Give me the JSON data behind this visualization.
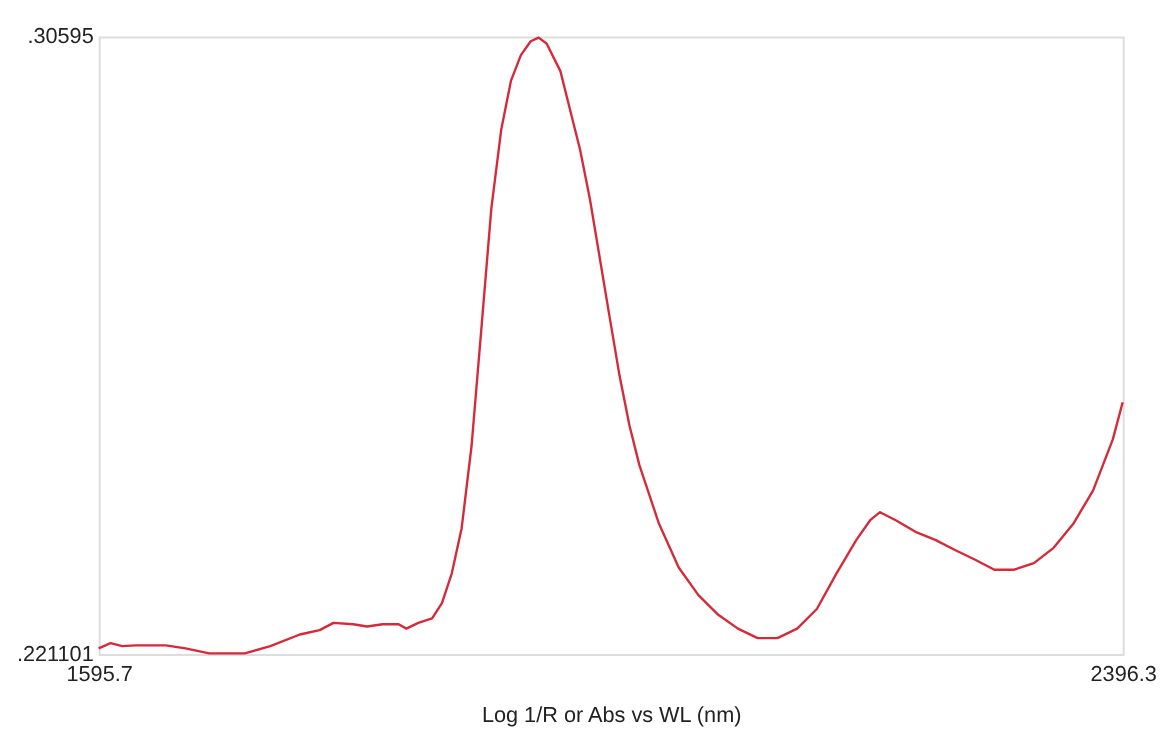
{
  "chart_data": {
    "type": "line",
    "xlabel": "Log 1/R or Abs vs WL (nm)",
    "xlim": [
      1595.7,
      2396.3
    ],
    "xticks": [
      {
        "value": 1595.7,
        "label": "1595.7"
      },
      {
        "value": 2396.3,
        "label": "2396.3"
      }
    ],
    "ylim": [
      0.221101,
      0.30595
    ],
    "yticks": [
      {
        "value": 0.221101,
        "label": ".221101"
      },
      {
        "value": 0.30595,
        "label": ".30595"
      }
    ],
    "line_style": "solid",
    "series": [
      {
        "color": "#d42a3a",
        "x": [
          1595.7,
          1605.0,
          1614.2,
          1625.0,
          1648.1,
          1663.6,
          1682.1,
          1709.9,
          1729.9,
          1753.0,
          1768.5,
          1779.3,
          1794.7,
          1805.5,
          1817.8,
          1830.2,
          1836.3,
          1845.6,
          1856.4,
          1864.1,
          1871.8,
          1879.5,
          1887.3,
          1895.0,
          1902.7,
          1910.4,
          1918.1,
          1925.8,
          1933.5,
          1939.7,
          1945.9,
          1956.7,
          1964.4,
          1972.1,
          1979.8,
          1987.5,
          1995.2,
          2003.0,
          2010.7,
          2018.4,
          2033.8,
          2049.2,
          2064.6,
          2080.1,
          2095.5,
          2110.9,
          2126.4,
          2141.8,
          2157.2,
          2172.6,
          2188.1,
          2198.9,
          2206.6,
          2218.9,
          2234.3,
          2249.8,
          2265.2,
          2280.6,
          2296.0,
          2311.5,
          2326.9,
          2342.3,
          2357.7,
          2373.2,
          2388.6,
          2396.3
        ],
        "values": [
          0.2219,
          0.2226,
          0.2222,
          0.2223,
          0.2223,
          0.2219,
          0.2212,
          0.2212,
          0.2222,
          0.2238,
          0.2244,
          0.2254,
          0.2252,
          0.2249,
          0.2252,
          0.2252,
          0.2246,
          0.2254,
          0.226,
          0.2281,
          0.2322,
          0.2384,
          0.2498,
          0.266,
          0.2823,
          0.2931,
          0.2999,
          0.3034,
          0.3053,
          0.3058,
          0.305,
          0.3012,
          0.2958,
          0.2904,
          0.2836,
          0.2755,
          0.2674,
          0.2593,
          0.2525,
          0.2471,
          0.239,
          0.233,
          0.2292,
          0.2265,
          0.2246,
          0.2233,
          0.2233,
          0.2246,
          0.2273,
          0.2322,
          0.2368,
          0.2395,
          0.2406,
          0.2395,
          0.2379,
          0.2368,
          0.2354,
          0.2341,
          0.2327,
          0.2327,
          0.2336,
          0.2357,
          0.239,
          0.2436,
          0.2506,
          0.2557
        ]
      }
    ]
  }
}
